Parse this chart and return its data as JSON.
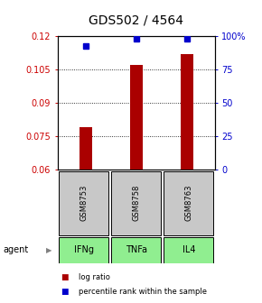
{
  "title": "GDS502 / 4564",
  "samples": [
    "GSM8753",
    "GSM8758",
    "GSM8763"
  ],
  "agents": [
    "IFNg",
    "TNFa",
    "IL4"
  ],
  "log_ratio": [
    0.079,
    0.107,
    0.112
  ],
  "percentile": [
    0.93,
    0.985,
    0.985
  ],
  "ylim_left": [
    0.06,
    0.12
  ],
  "ylim_right": [
    0,
    1.0
  ],
  "yticks_left": [
    0.06,
    0.075,
    0.09,
    0.105,
    0.12
  ],
  "ytick_labels_left": [
    "0.06",
    "0.075",
    "0.09",
    "0.105",
    "0.12"
  ],
  "yticks_right": [
    0,
    0.25,
    0.5,
    0.75,
    1.0
  ],
  "ytick_labels_right": [
    "0",
    "25",
    "50",
    "75",
    "100%"
  ],
  "bar_color": "#AA0000",
  "dot_color": "#0000CC",
  "baseline": 0.06,
  "gray_box_color": "#C8C8C8",
  "green_box_color": "#90EE90",
  "agent_label": "agent",
  "arrow": "▶",
  "legend_log": "log ratio",
  "legend_pct": "percentile rank within the sample",
  "title_fontsize": 10,
  "tick_fontsize": 7,
  "label_fontsize": 7,
  "bar_width": 0.25
}
